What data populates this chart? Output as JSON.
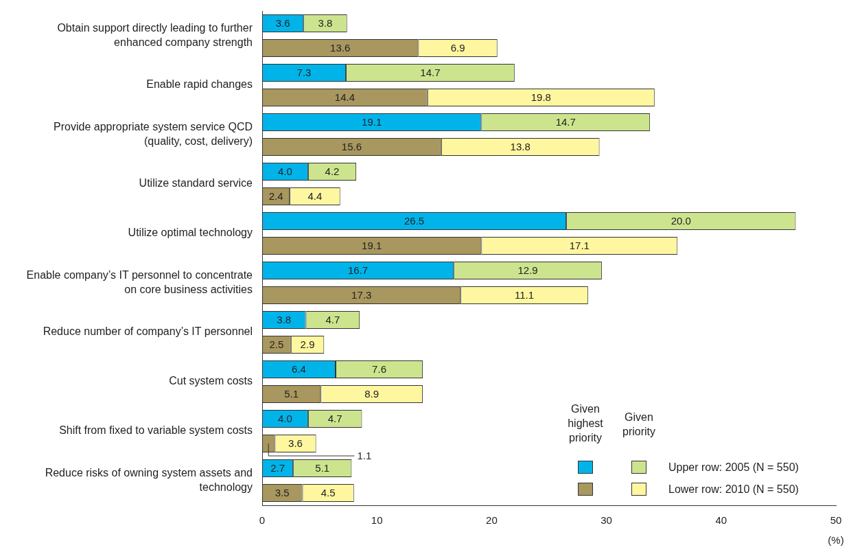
{
  "chart_data": {
    "type": "bar",
    "orientation": "horizontal",
    "stacked": true,
    "categories": [
      "Obtain support directly leading to further enhanced company strength",
      null,
      "Enable rapid changes",
      null,
      "Provide appropriate system service QCD (quality, cost, delivery)",
      null,
      "Utilize standard service",
      null,
      "Utilize optimal technology",
      null,
      "Enable company’s IT personnel to concentrate on core business activities",
      null,
      "Reduce number of company’s IT personnel",
      null,
      "Cut system costs",
      null,
      "Shift from fixed to variable system costs",
      null,
      "Reduce risks of owning system assets and technology",
      null
    ],
    "series": [
      {
        "name": "Given highest priority",
        "color": "#00b4ea",
        "values": [
          3.6,
          null,
          7.3,
          null,
          19.1,
          null,
          4.0,
          null,
          26.5,
          null,
          16.7,
          null,
          3.8,
          null,
          6.4,
          null,
          4.0,
          null,
          2.7,
          null
        ],
        "value_labels": [
          "3.6",
          null,
          "7.3",
          null,
          "19.1",
          null,
          "4.0",
          null,
          "26.5",
          null,
          "16.7",
          null,
          "3.8",
          null,
          "6.4",
          null,
          "4.0",
          null,
          "2.7",
          null
        ]
      },
      {
        "name": "Given priority",
        "color": "#cde48e",
        "values": [
          3.8,
          null,
          14.7,
          null,
          14.7,
          null,
          4.2,
          null,
          20.0,
          null,
          12.9,
          null,
          4.7,
          null,
          7.6,
          null,
          4.7,
          null,
          5.1,
          null
        ],
        "value_labels": [
          "3.8",
          null,
          "14.7",
          null,
          "14.7",
          null,
          "4.2",
          null,
          "20.0",
          null,
          "12.9",
          null,
          "4.7",
          null,
          "7.6",
          null,
          "4.7",
          null,
          "5.1",
          null
        ]
      },
      {
        "color": "#a8975e",
        "values": [
          null,
          13.6,
          null,
          14.4,
          null,
          15.6,
          null,
          2.4,
          null,
          19.1,
          null,
          17.3,
          null,
          2.5,
          null,
          5.1,
          null,
          1.1,
          null,
          3.5
        ],
        "value_labels": [
          null,
          "13.6",
          null,
          "14.4",
          null,
          "15.6",
          null,
          "2.4",
          null,
          "19.1",
          null,
          "17.3",
          null,
          "2.5",
          null,
          "5.1",
          null,
          "1.1",
          null,
          "3.5"
        ]
      },
      {
        "color": "#fff6a0",
        "values": [
          null,
          6.9,
          null,
          19.8,
          null,
          13.8,
          null,
          4.4,
          null,
          17.1,
          null,
          11.1,
          null,
          2.9,
          null,
          8.9,
          null,
          3.6,
          null,
          4.5
        ],
        "value_labels": [
          null,
          "6.9",
          null,
          "19.8",
          null,
          "13.8",
          null,
          "4.4",
          null,
          "17.1",
          null,
          "11.1",
          null,
          "2.9",
          null,
          "8.9",
          null,
          "3.6",
          null,
          "4.5"
        ]
      }
    ],
    "xlim": [
      0,
      50
    ],
    "xticks": [
      0,
      10,
      20,
      30,
      40,
      50
    ],
    "xlabel": "(%)",
    "grid": false,
    "legend": "bottom right",
    "annotations": [
      "Upper row: 2005 (N = 550)",
      "Lower row: 2010 (N = 550)"
    ]
  }
}
